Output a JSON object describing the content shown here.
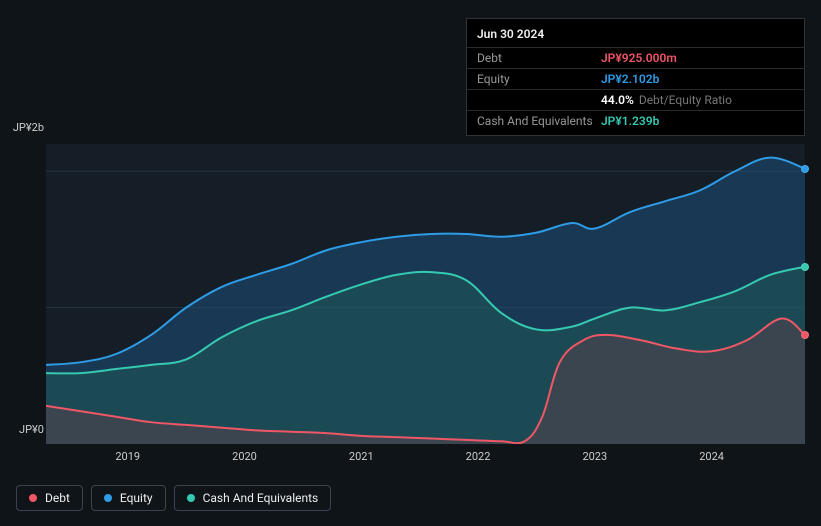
{
  "background_color": "#0f1419",
  "tooltip": {
    "date": "Jun 30 2024",
    "rows": [
      {
        "label": "Debt",
        "value": "JP¥925.000m",
        "color": "#ef5766"
      },
      {
        "label": "Equity",
        "value": "JP¥2.102b",
        "color": "#2e9ce6"
      },
      {
        "label": "",
        "value": "44.0%",
        "suffix": "Debt/Equity Ratio",
        "color": "#ffffff"
      },
      {
        "label": "Cash And Equivalents",
        "value": "JP¥1.239b",
        "color": "#35c9b1"
      }
    ]
  },
  "chart": {
    "type": "area",
    "plot_bg": "#151d26",
    "ylabel_top": "JP¥2b",
    "ylabel_bottom": "JP¥0",
    "ylim": [
      0,
      2.2
    ],
    "y_gridlines": [
      1.0,
      2.0
    ],
    "grid_color": "#2a3540",
    "x_categories": [
      "2019",
      "2020",
      "2021",
      "2022",
      "2023",
      "2024"
    ],
    "x_range": [
      2018.3,
      2024.8
    ],
    "series": [
      {
        "name": "Equity",
        "color": "#2e9ce6",
        "fill": "#1e4e78",
        "fill_opacity": 0.55,
        "line_width": 2,
        "data": [
          [
            2018.3,
            0.58
          ],
          [
            2018.6,
            0.6
          ],
          [
            2018.9,
            0.66
          ],
          [
            2019.2,
            0.8
          ],
          [
            2019.5,
            1.0
          ],
          [
            2019.8,
            1.15
          ],
          [
            2020.1,
            1.24
          ],
          [
            2020.4,
            1.32
          ],
          [
            2020.7,
            1.42
          ],
          [
            2021.0,
            1.48
          ],
          [
            2021.3,
            1.52
          ],
          [
            2021.6,
            1.54
          ],
          [
            2021.9,
            1.54
          ],
          [
            2022.2,
            1.52
          ],
          [
            2022.5,
            1.55
          ],
          [
            2022.8,
            1.62
          ],
          [
            2023.0,
            1.58
          ],
          [
            2023.3,
            1.7
          ],
          [
            2023.6,
            1.78
          ],
          [
            2023.9,
            1.86
          ],
          [
            2024.2,
            2.0
          ],
          [
            2024.5,
            2.1
          ],
          [
            2024.8,
            2.02
          ]
        ]
      },
      {
        "name": "Cash And Equivalents",
        "color": "#35c9b1",
        "fill": "#1f5a56",
        "fill_opacity": 0.55,
        "line_width": 2,
        "data": [
          [
            2018.3,
            0.52
          ],
          [
            2018.6,
            0.52
          ],
          [
            2018.9,
            0.55
          ],
          [
            2019.2,
            0.58
          ],
          [
            2019.5,
            0.62
          ],
          [
            2019.8,
            0.78
          ],
          [
            2020.1,
            0.9
          ],
          [
            2020.4,
            0.98
          ],
          [
            2020.7,
            1.08
          ],
          [
            2021.0,
            1.17
          ],
          [
            2021.3,
            1.24
          ],
          [
            2021.6,
            1.26
          ],
          [
            2021.9,
            1.2
          ],
          [
            2022.2,
            0.96
          ],
          [
            2022.5,
            0.84
          ],
          [
            2022.8,
            0.86
          ],
          [
            2023.0,
            0.92
          ],
          [
            2023.3,
            1.0
          ],
          [
            2023.6,
            0.98
          ],
          [
            2023.9,
            1.04
          ],
          [
            2024.2,
            1.12
          ],
          [
            2024.5,
            1.24
          ],
          [
            2024.8,
            1.3
          ]
        ]
      },
      {
        "name": "Debt",
        "color": "#ef5766",
        "fill": "#6a3e48",
        "fill_opacity": 0.4,
        "line_width": 2,
        "data": [
          [
            2018.3,
            0.28
          ],
          [
            2018.6,
            0.24
          ],
          [
            2018.9,
            0.2
          ],
          [
            2019.2,
            0.16
          ],
          [
            2019.5,
            0.14
          ],
          [
            2019.8,
            0.12
          ],
          [
            2020.1,
            0.1
          ],
          [
            2020.4,
            0.09
          ],
          [
            2020.7,
            0.08
          ],
          [
            2021.0,
            0.06
          ],
          [
            2021.3,
            0.05
          ],
          [
            2021.6,
            0.04
          ],
          [
            2021.9,
            0.03
          ],
          [
            2022.2,
            0.02
          ],
          [
            2022.4,
            0.02
          ],
          [
            2022.55,
            0.2
          ],
          [
            2022.7,
            0.6
          ],
          [
            2022.9,
            0.76
          ],
          [
            2023.1,
            0.8
          ],
          [
            2023.4,
            0.76
          ],
          [
            2023.7,
            0.7
          ],
          [
            2024.0,
            0.68
          ],
          [
            2024.3,
            0.76
          ],
          [
            2024.6,
            0.92
          ],
          [
            2024.8,
            0.8
          ]
        ]
      }
    ],
    "markers": [
      {
        "series": "Equity",
        "x": 2024.8,
        "y": 2.02,
        "color": "#2e9ce6"
      },
      {
        "series": "Cash And Equivalents",
        "x": 2024.8,
        "y": 1.3,
        "color": "#35c9b1"
      },
      {
        "series": "Debt",
        "x": 2024.8,
        "y": 0.8,
        "color": "#ef5766"
      }
    ]
  },
  "legend": [
    {
      "label": "Debt",
      "color": "#ef5766"
    },
    {
      "label": "Equity",
      "color": "#2e9ce6"
    },
    {
      "label": "Cash And Equivalents",
      "color": "#35c9b1"
    }
  ]
}
